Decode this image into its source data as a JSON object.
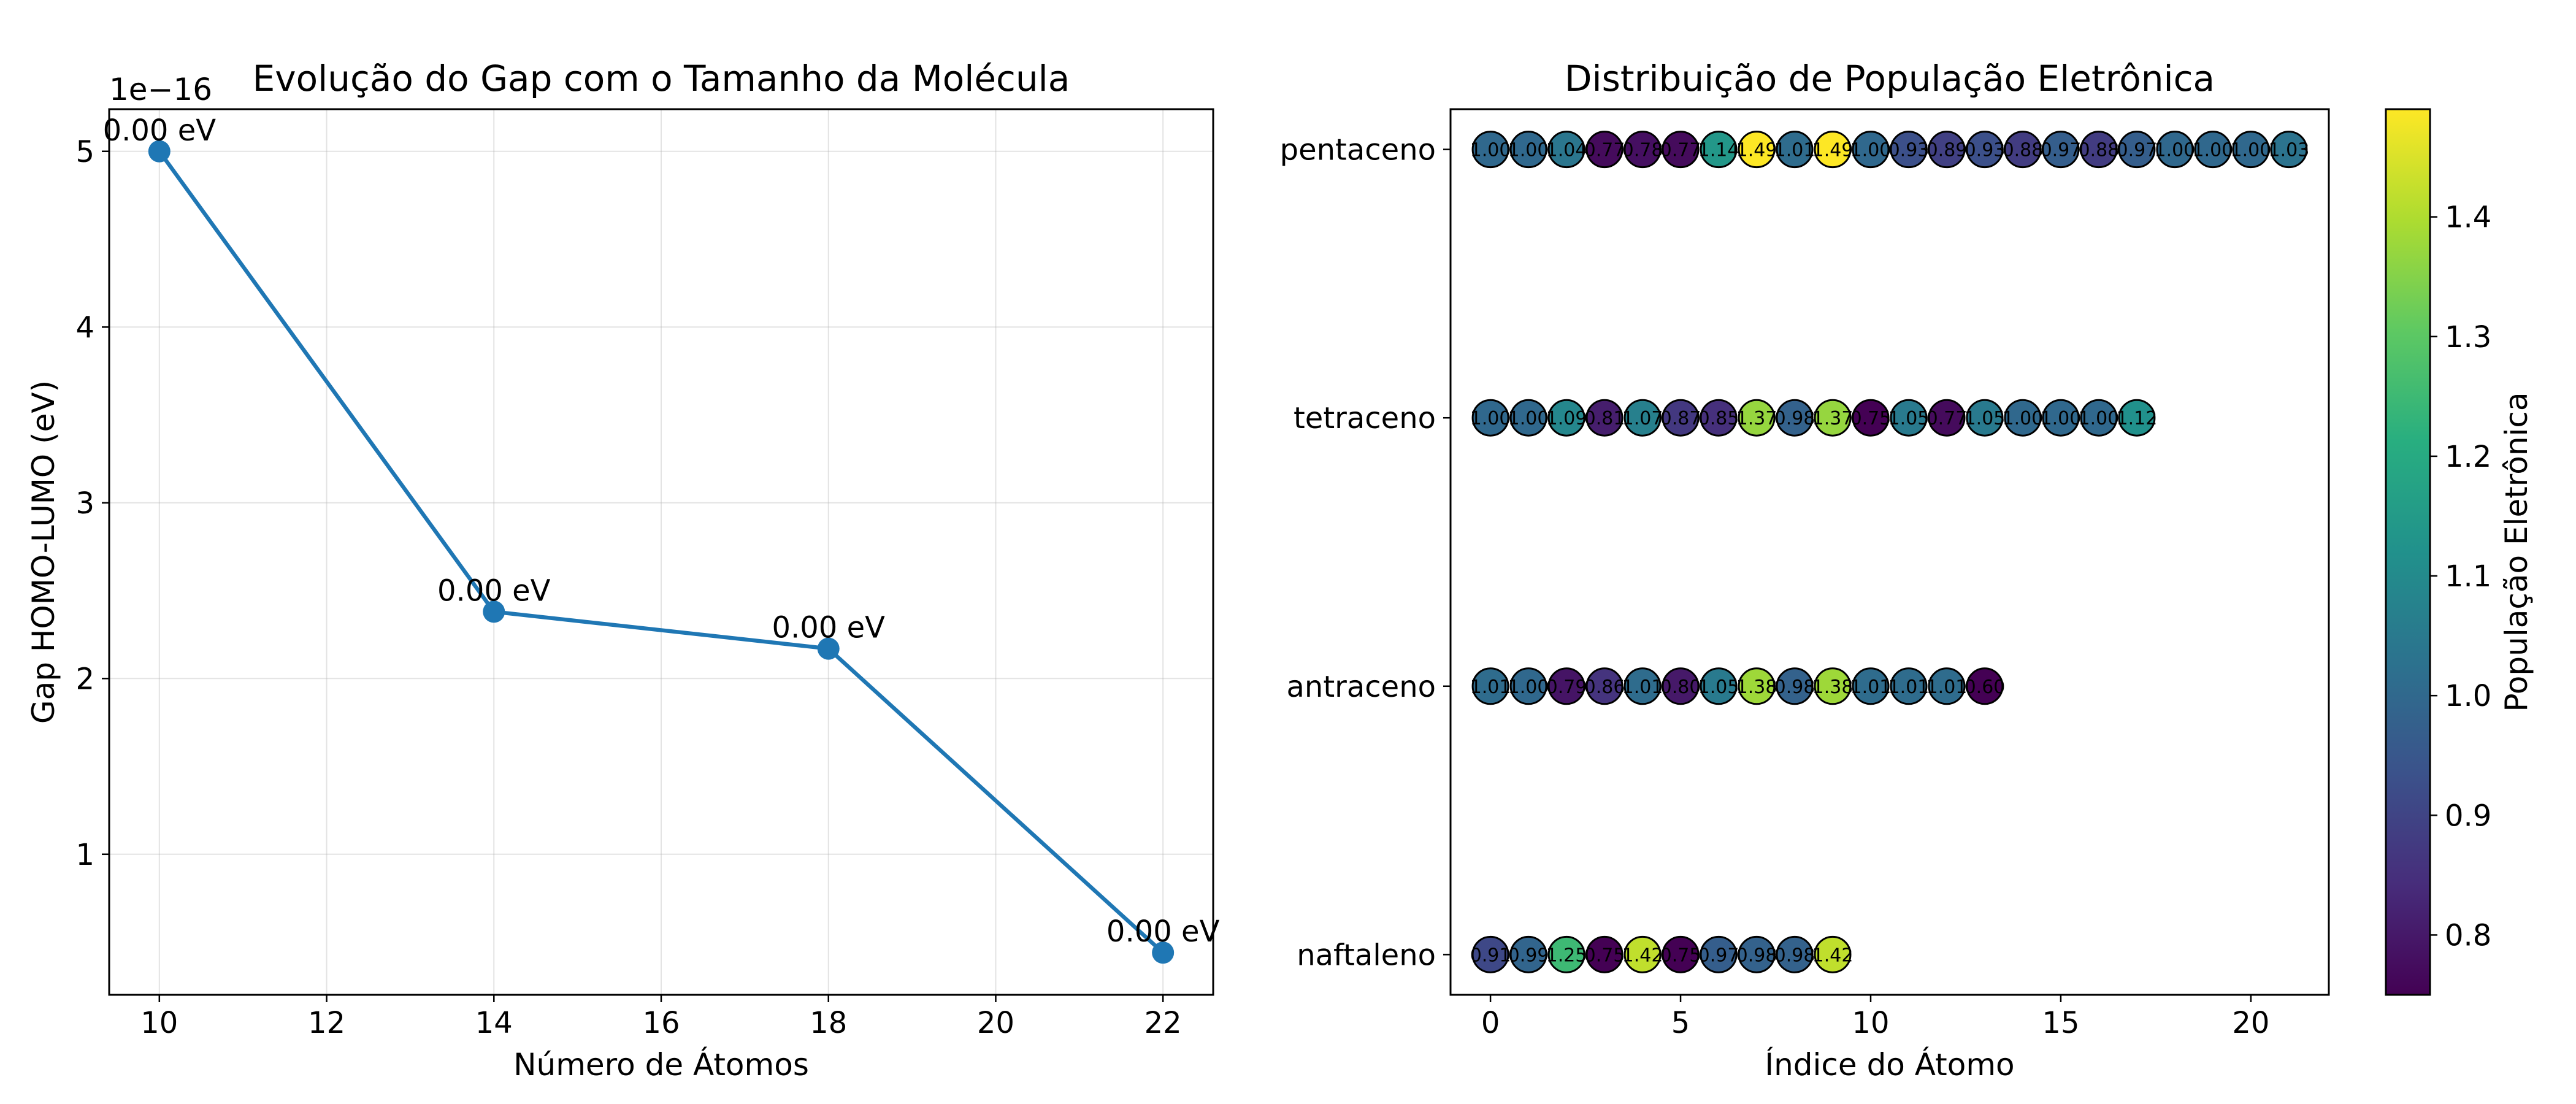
{
  "chart_data": [
    {
      "type": "line",
      "title": "Evolução do Gap com o Tamanho da Molécula",
      "xlabel": "Número de Átomos",
      "ylabel": "Gap HOMO-LUMO (eV)",
      "y_offset_label": "1e−16",
      "x": [
        10,
        14,
        18,
        22
      ],
      "values": [
        5.0,
        2.38,
        2.17,
        0.44
      ],
      "point_labels": [
        "0.00 eV",
        "0.00 eV",
        "0.00 eV",
        "0.00 eV"
      ],
      "xlim": [
        9.4,
        22.6
      ],
      "ylim": [
        0.2,
        5.24
      ],
      "xticks": [
        10,
        12,
        14,
        16,
        18,
        20,
        22
      ],
      "yticks": [
        1,
        2,
        3,
        4,
        5
      ],
      "grid": true,
      "color": "#1f77b4"
    },
    {
      "type": "scatter",
      "title": "Distribuição de População Eletrônica",
      "xlabel": "Índice do Átomo",
      "ylabel": "",
      "categories": [
        "naftaleno",
        "antraceno",
        "tetraceno",
        "pentaceno"
      ],
      "xlim": [
        -1.05,
        22.05
      ],
      "xticks": [
        0,
        5,
        10,
        15,
        20
      ],
      "grid": false,
      "series": [
        {
          "name": "naftaleno",
          "values": [
            0.91,
            0.99,
            1.25,
            0.75,
            1.42,
            0.75,
            0.97,
            0.98,
            0.98,
            1.42
          ]
        },
        {
          "name": "antraceno",
          "values": [
            1.01,
            1.0,
            0.79,
            0.86,
            1.01,
            0.8,
            1.05,
            1.38,
            0.98,
            1.38,
            1.01,
            1.01,
            1.01,
            0.6
          ]
        },
        {
          "name": "tetraceno",
          "values": [
            1.0,
            1.0,
            1.09,
            0.81,
            1.07,
            0.87,
            0.85,
            1.37,
            0.98,
            1.37,
            0.75,
            1.05,
            0.77,
            1.05,
            1.0,
            1.0,
            1.0,
            1.12
          ]
        },
        {
          "name": "pentaceno",
          "values": [
            1.0,
            1.0,
            1.04,
            0.77,
            0.78,
            0.77,
            1.14,
            1.49,
            1.01,
            1.49,
            1.0,
            0.93,
            0.89,
            0.93,
            0.88,
            0.97,
            0.88,
            0.97,
            1.0,
            1.0,
            1.0,
            1.03
          ]
        }
      ],
      "colorbar": {
        "label": "População Eletrônica",
        "min": 0.75,
        "max": 1.49,
        "ticks": [
          0.8,
          0.9,
          1.0,
          1.1,
          1.2,
          1.3,
          1.4
        ],
        "colormap": "viridis"
      }
    }
  ]
}
